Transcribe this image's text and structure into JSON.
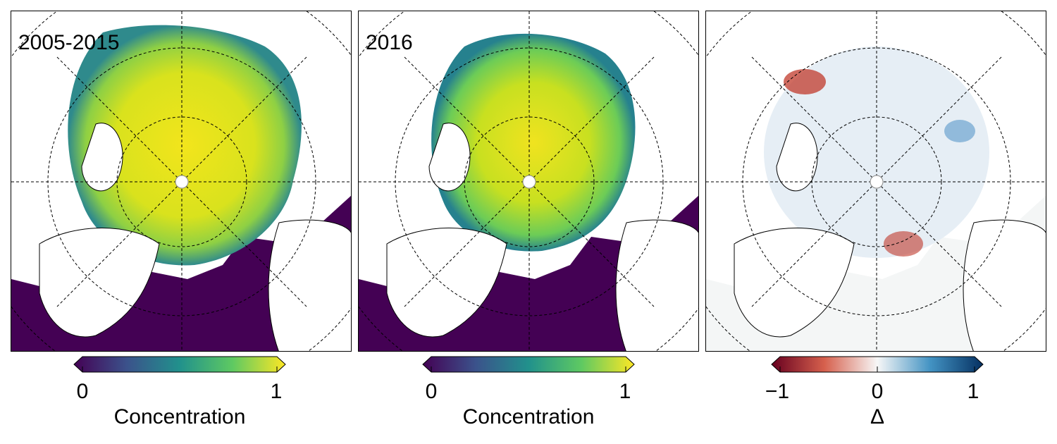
{
  "panels": [
    {
      "label": "2005-2015",
      "scheme": "viridis"
    },
    {
      "label": "2016",
      "scheme": "viridis"
    },
    {
      "label": "",
      "scheme": "rdbu"
    }
  ],
  "colorbars": [
    {
      "min_label": "0",
      "mid_label": "",
      "max_label": "1",
      "title": "Concentration"
    },
    {
      "min_label": "0",
      "mid_label": "",
      "max_label": "1",
      "title": "Concentration"
    },
    {
      "min_label": "−1",
      "mid_label": "0",
      "max_label": "1",
      "title": "Δ"
    }
  ],
  "colors": {
    "viridis": [
      "#440154",
      "#3b528b",
      "#21918c",
      "#5ec962",
      "#fde725"
    ],
    "rdbu": [
      "#67001f",
      "#d6604d",
      "#f7f7f7",
      "#4393c3",
      "#053061"
    ],
    "land": "#ffffff",
    "ocean_open": "#440154",
    "ice_high": "#e3e41c",
    "diff_neutral": "#f4f6f6"
  }
}
